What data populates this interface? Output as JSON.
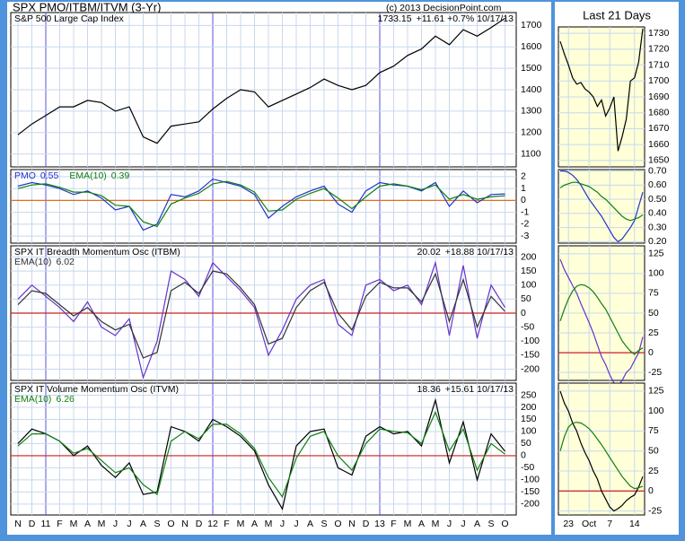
{
  "title": "SPX PMO/ITBM/ITVM (3-Yr)",
  "copyright": "(c) 2013 DecisionPoint.com",
  "right_title": "Last 21 Days",
  "chart_data": [
    {
      "type": "line",
      "ylim": [
        1040,
        1760
      ],
      "yticks": [
        1100,
        1200,
        1300,
        1400,
        1500,
        1600,
        1700
      ],
      "grid": true,
      "annotation": "+11.61 +0.7% 10/17/13",
      "legend_values": false,
      "series": [
        {
          "name": "S&P 500 Large Cap Index",
          "color": "#000000",
          "values": [
            1190,
            1240,
            1280,
            1320,
            1320,
            1350,
            1340,
            1300,
            1320,
            1180,
            1150,
            1230,
            1240,
            1250,
            1310,
            1360,
            1400,
            1390,
            1320,
            1350,
            1380,
            1410,
            1450,
            1420,
            1400,
            1420,
            1480,
            1510,
            1560,
            1590,
            1650,
            1610,
            1680,
            1650,
            1690,
            1733.15
          ]
        }
      ]
    },
    {
      "type": "line",
      "ylim": [
        -3.6,
        2.6
      ],
      "yticks": [
        -3,
        -2,
        -1,
        0,
        1,
        2
      ],
      "grid": true,
      "hline": {
        "value": 0,
        "color": "#e07020"
      },
      "legend_values": true,
      "series": [
        {
          "name": "PMO",
          "color": "#2233cc",
          "values": [
            1.2,
            1.5,
            1.3,
            1.0,
            0.5,
            0.8,
            0.2,
            -0.8,
            -0.5,
            -2.5,
            -2.0,
            0.5,
            0.3,
            0.8,
            1.8,
            1.5,
            1.2,
            0.5,
            -1.5,
            -0.5,
            0.3,
            0.8,
            1.2,
            -0.3,
            -1.0,
            0.8,
            1.5,
            1.3,
            1.2,
            0.8,
            1.5,
            -0.5,
            0.8,
            -0.2,
            0.5,
            0.55
          ]
        },
        {
          "name": "EMA(10)",
          "color": "#108010",
          "values": [
            1.0,
            1.3,
            1.4,
            1.1,
            0.7,
            0.7,
            0.4,
            -0.4,
            -0.5,
            -1.8,
            -2.2,
            -0.3,
            0.2,
            0.6,
            1.4,
            1.6,
            1.3,
            0.7,
            -0.9,
            -0.8,
            0.1,
            0.6,
            1.0,
            0.2,
            -0.7,
            0.3,
            1.2,
            1.4,
            1.2,
            0.9,
            1.3,
            0.1,
            0.5,
            0.1,
            0.3,
            0.39
          ]
        }
      ]
    },
    {
      "type": "line",
      "title": "SPX IT Breadth Momentum Osc (ITBM)",
      "ylim": [
        -240,
        240
      ],
      "yticks": [
        -200,
        -150,
        -100,
        -50,
        0,
        50,
        100,
        150,
        200
      ],
      "grid": true,
      "hline": {
        "value": 0,
        "color": "#cc2222"
      },
      "annotation": "+18.88 10/17/13",
      "legend_values": true,
      "series": [
        {
          "color": "#6633cc",
          "values": [
            50,
            100,
            60,
            20,
            -30,
            40,
            -50,
            -80,
            -20,
            -230,
            -100,
            150,
            120,
            60,
            180,
            130,
            80,
            20,
            -150,
            -60,
            50,
            100,
            120,
            -40,
            -80,
            100,
            120,
            80,
            100,
            30,
            180,
            -80,
            170,
            -90,
            100,
            20.02
          ]
        },
        {
          "name": "EMA(10)",
          "color": "#333333",
          "values": [
            30,
            80,
            70,
            30,
            -10,
            20,
            -30,
            -60,
            -40,
            -160,
            -140,
            80,
            110,
            70,
            150,
            140,
            90,
            30,
            -110,
            -90,
            20,
            80,
            110,
            0,
            -60,
            60,
            110,
            90,
            90,
            40,
            140,
            -30,
            120,
            -50,
            60,
            6.02
          ]
        }
      ]
    },
    {
      "type": "line",
      "title": "SPX IT Volume Momentum Osc (ITVM)",
      "ylim": [
        -245,
        300
      ],
      "yticks": [
        -200,
        -150,
        -100,
        -50,
        0,
        50,
        100,
        150,
        200,
        250
      ],
      "grid": true,
      "hline": {
        "value": 0,
        "color": "#cc2222"
      },
      "annotation": "+15.61 10/17/13",
      "legend_values": true,
      "categories": [
        "N",
        "D",
        "11",
        "F",
        "M",
        "A",
        "M",
        "J",
        "J",
        "A",
        "S",
        "O",
        "N",
        "D",
        "12",
        "F",
        "M",
        "A",
        "M",
        "J",
        "J",
        "A",
        "S",
        "O",
        "N",
        "D",
        "13",
        "F",
        "M",
        "A",
        "M",
        "J",
        "J",
        "A",
        "S",
        "O"
      ],
      "series": [
        {
          "color": "#000000",
          "values": [
            50,
            110,
            90,
            60,
            0,
            40,
            -40,
            -90,
            -30,
            -160,
            -150,
            120,
            100,
            60,
            150,
            120,
            80,
            20,
            -120,
            -220,
            40,
            100,
            110,
            -50,
            -80,
            80,
            120,
            90,
            100,
            40,
            230,
            -30,
            140,
            -100,
            90,
            18.36
          ]
        },
        {
          "name": "EMA(10)",
          "color": "#108010",
          "values": [
            40,
            90,
            90,
            60,
            10,
            30,
            -20,
            -70,
            -50,
            -120,
            -160,
            60,
            100,
            70,
            130,
            130,
            90,
            30,
            -90,
            -170,
            -10,
            80,
            100,
            0,
            -60,
            50,
            110,
            100,
            95,
            50,
            180,
            20,
            110,
            -60,
            50,
            6.26
          ]
        }
      ]
    },
    {
      "type": "line",
      "ylim": [
        1646,
        1734
      ],
      "yticks": [
        1650,
        1660,
        1670,
        1680,
        1690,
        1700,
        1710,
        1720,
        1730
      ],
      "grid": true,
      "series": [
        {
          "color": "#000000",
          "values": [
            1725,
            1717,
            1710,
            1702,
            1698,
            1699,
            1695,
            1693,
            1690,
            1684,
            1688,
            1678,
            1683,
            1690,
            1656,
            1665,
            1676,
            1700,
            1702,
            1712,
            1733
          ]
        }
      ]
    },
    {
      "type": "line",
      "ylim": [
        0.19,
        0.71
      ],
      "yticks": [
        {
          "value": 0.2,
          "label": "0.20"
        },
        {
          "value": 0.3,
          "label": "0.30"
        },
        {
          "value": 0.4,
          "label": "0.40"
        },
        {
          "value": 0.5,
          "label": "0.50"
        },
        {
          "value": 0.6,
          "label": "0.60"
        },
        {
          "value": 0.7,
          "label": "0.70"
        }
      ],
      "grid": true,
      "series": [
        {
          "color": "#2233cc",
          "values": [
            0.7,
            0.7,
            0.69,
            0.67,
            0.64,
            0.6,
            0.55,
            0.5,
            0.46,
            0.42,
            0.38,
            0.33,
            0.28,
            0.23,
            0.2,
            0.22,
            0.26,
            0.3,
            0.35,
            0.45,
            0.55
          ]
        },
        {
          "color": "#108010",
          "values": [
            0.58,
            0.6,
            0.61,
            0.62,
            0.62,
            0.61,
            0.6,
            0.59,
            0.57,
            0.55,
            0.52,
            0.5,
            0.47,
            0.44,
            0.41,
            0.38,
            0.36,
            0.35,
            0.36,
            0.37,
            0.39
          ]
        }
      ]
    },
    {
      "type": "line",
      "ylim": [
        -35,
        135
      ],
      "yticks": [
        -25,
        0,
        25,
        50,
        75,
        100,
        125
      ],
      "grid": true,
      "hline": {
        "value": 0,
        "color": "#cc2222"
      },
      "series": [
        {
          "color": "#6633cc",
          "values": [
            118,
            105,
            95,
            85,
            75,
            62,
            50,
            38,
            25,
            10,
            -5,
            -15,
            -28,
            -38,
            -42,
            -35,
            -25,
            -20,
            -10,
            0,
            20
          ]
        },
        {
          "color": "#108010",
          "values": [
            40,
            55,
            68,
            78,
            84,
            86,
            85,
            82,
            77,
            70,
            62,
            55,
            45,
            35,
            25,
            15,
            8,
            2,
            -2,
            3,
            6
          ]
        }
      ]
    },
    {
      "type": "line",
      "ylim": [
        -30,
        135
      ],
      "yticks": [
        -25,
        0,
        25,
        50,
        75,
        100,
        125
      ],
      "grid": true,
      "hline": {
        "value": 0,
        "color": "#cc2222"
      },
      "categories": [
        null,
        null,
        "23",
        null,
        null,
        null,
        null,
        "Oct",
        null,
        null,
        null,
        null,
        "7",
        null,
        null,
        null,
        null,
        null,
        "14",
        null,
        null
      ],
      "series": [
        {
          "color": "#000000",
          "values": [
            125,
            110,
            100,
            85,
            75,
            60,
            48,
            38,
            25,
            15,
            0,
            -10,
            -20,
            -25,
            -22,
            -18,
            -12,
            -8,
            -5,
            5,
            18
          ]
        },
        {
          "color": "#108010",
          "values": [
            50,
            68,
            80,
            85,
            86,
            85,
            82,
            78,
            72,
            65,
            58,
            50,
            42,
            34,
            26,
            18,
            12,
            6,
            3,
            4,
            6
          ]
        }
      ]
    }
  ]
}
